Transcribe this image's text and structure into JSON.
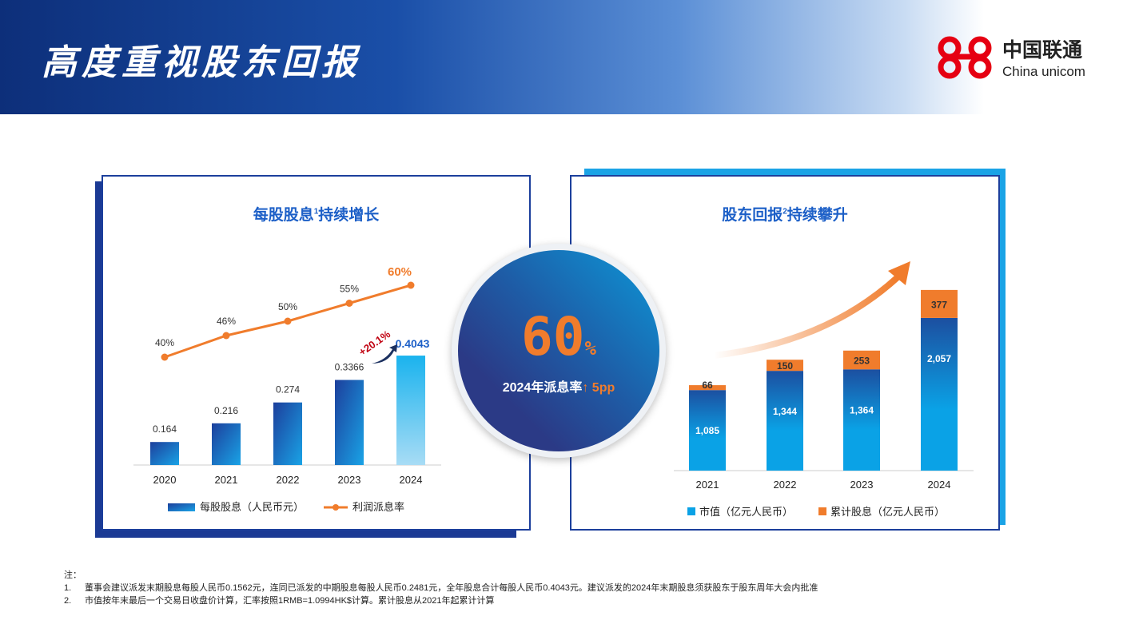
{
  "header": {
    "title": "高度重视股东回报",
    "logo_cn": "中国联通",
    "logo_en": "China unicom"
  },
  "left_panel": {
    "title": "每股股息",
    "title_sup": "1",
    "title_suffix": "持续增长",
    "growth_label": "+20.1%",
    "legend": {
      "bar": "每股股息（人民币元）",
      "line": "利润派息率"
    }
  },
  "center": {
    "value": "60",
    "unit": "%",
    "label": "2024年派息率",
    "arrow": "↑",
    "change": "5pp"
  },
  "right_panel": {
    "title": "股东回报",
    "title_sup": "2",
    "title_suffix": "持续攀升",
    "legend": {
      "market": "市值（亿元人民币）",
      "dividend": "累计股息（亿元人民币）"
    }
  },
  "colors": {
    "orange": "#f07c2c",
    "blue": "#1c5fc7",
    "light_blue": "#1aa3e6"
  },
  "chart_data": [
    {
      "type": "bar",
      "title": "每股股息持续增长",
      "categories": [
        "2020",
        "2021",
        "2022",
        "2023",
        "2024"
      ],
      "series": [
        {
          "name": "每股股息（人民币元）",
          "values": [
            0.164,
            0.216,
            0.274,
            0.3366,
            0.4043
          ],
          "labels": [
            "0.164",
            "0.216",
            "0.274",
            "0.3366",
            "0.4043"
          ]
        },
        {
          "name": "利润派息率",
          "type": "line",
          "values": [
            40,
            46,
            50,
            55,
            60
          ],
          "labels": [
            "40%",
            "46%",
            "50%",
            "55%",
            "60%"
          ]
        }
      ]
    },
    {
      "type": "bar",
      "stacked": true,
      "title": "股东回报持续攀升",
      "categories": [
        "2021",
        "2022",
        "2023",
        "2024"
      ],
      "series": [
        {
          "name": "市值（亿元人民币）",
          "values": [
            1085,
            1344,
            1364,
            2057
          ],
          "labels": [
            "1,085",
            "1,344",
            "1,364",
            "2,057"
          ]
        },
        {
          "name": "累计股息（亿元人民币）",
          "values": [
            66,
            150,
            253,
            377
          ],
          "labels": [
            "66",
            "150",
            "253",
            "377"
          ]
        }
      ]
    }
  ],
  "notes": {
    "heading": "注：",
    "items": [
      {
        "num": "1.",
        "text": "董事会建议派发末期股息每股人民币0.1562元，连同已派发的中期股息每股人民币0.2481元，全年股息合计每股人民币0.4043元。建议派发的2024年末期股息须获股东于股东周年大会内批准"
      },
      {
        "num": "2.",
        "text": "市值按年末最后一个交易日收盘价计算，汇率按照1RMB=1.0994HK$计算。累计股息从2021年起累计计算"
      }
    ]
  }
}
